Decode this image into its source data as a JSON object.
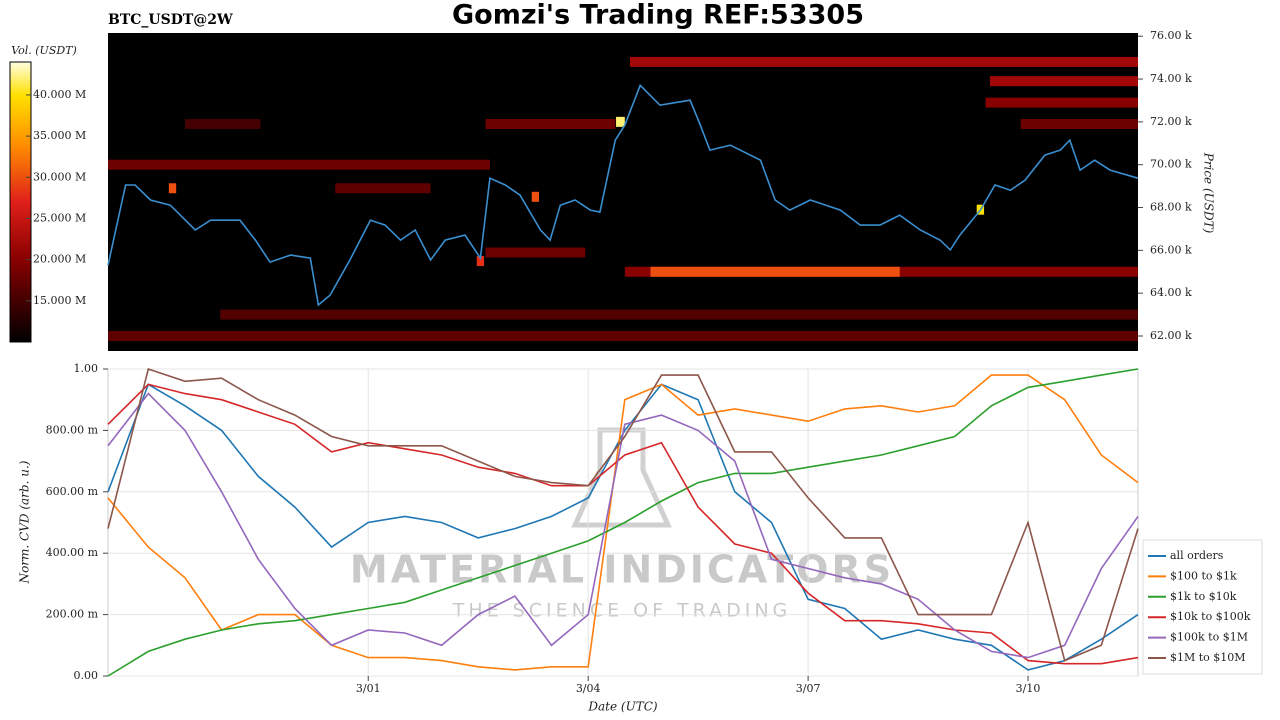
{
  "chart_data": [
    {
      "type": "heatmap",
      "title": "Gomzi's Trading REF:53305",
      "subtitle": "BTC_USDT@2W",
      "ylabel": "Price (USDT)",
      "xlim": [
        -3.55,
        10.5
      ],
      "ylim": [
        61300,
        76150
      ],
      "yticks": [
        {
          "value": 62000,
          "label": "62.00 k"
        },
        {
          "value": 64000,
          "label": "64.00 k"
        },
        {
          "value": 66000,
          "label": "66.00 k"
        },
        {
          "value": 68000,
          "label": "68.00 k"
        },
        {
          "value": 70000,
          "label": "70.00 k"
        },
        {
          "value": 72000,
          "label": "72.00 k"
        },
        {
          "value": 74000,
          "label": "74.00 k"
        },
        {
          "value": 76000,
          "label": "76.00 k"
        }
      ],
      "color": "#3a8fd0",
      "x": [
        -3.55,
        -3.31,
        -3.18,
        -2.97,
        -2.7,
        -2.36,
        -2.15,
        -1.75,
        -1.54,
        -1.34,
        -1.06,
        -0.79,
        -0.68,
        -0.52,
        -0.25,
        0.03,
        0.23,
        0.44,
        0.64,
        0.85,
        1.05,
        1.32,
        1.53,
        1.66,
        1.87,
        2.07,
        2.35,
        2.48,
        2.62,
        2.82,
        3.03,
        3.16,
        3.37,
        3.5,
        3.71,
        3.98,
        4.39,
        4.53,
        4.66,
        4.94,
        5.35,
        5.55,
        5.75,
        6.03,
        6.44,
        6.71,
        6.98,
        7.25,
        7.53,
        7.8,
        7.94,
        8.07,
        8.35,
        8.55,
        8.76,
        8.96,
        9.23,
        9.44,
        9.57,
        9.71,
        9.91,
        10.12,
        10.5
      ],
      "values": [
        65300,
        69050,
        69050,
        68350,
        68110,
        66950,
        67410,
        67410,
        66480,
        65450,
        65780,
        65640,
        63450,
        63910,
        65550,
        67410,
        67180,
        66480,
        66950,
        65550,
        66480,
        66710,
        65640,
        69370,
        69050,
        68580,
        66950,
        66480,
        68110,
        68350,
        67880,
        67790,
        71150,
        71850,
        73710,
        72780,
        73010,
        71850,
        70680,
        70910,
        70210,
        68350,
        67880,
        68350,
        67880,
        67180,
        67180,
        67640,
        66950,
        66480,
        66020,
        66710,
        67880,
        69050,
        68810,
        69280,
        70450,
        70680,
        71150,
        69750,
        70210,
        69750,
        69370
      ],
      "heatmap": [
        {
          "price": 62000,
          "x0": -3.55,
          "x1": 10.5,
          "volume": 17000000
        },
        {
          "price": 63000,
          "x0": -2.02,
          "x1": 10.5,
          "volume": 16000000
        },
        {
          "price": 65000,
          "x0": 3.5,
          "x1": 10.5,
          "volume": 20000000
        },
        {
          "price": 65000,
          "x0": 3.85,
          "x1": 7.25,
          "volume": 30000000
        },
        {
          "price": 65900,
          "x0": 1.6,
          "x1": 2.96,
          "volume": 18000000
        },
        {
          "price": 68900,
          "x0": -0.45,
          "x1": 0.85,
          "volume": 17000000
        },
        {
          "price": 70000,
          "x0": -3.55,
          "x1": 1.66,
          "volume": 18000000
        },
        {
          "price": 71900,
          "x0": -2.5,
          "x1": -1.47,
          "volume": 15000000
        },
        {
          "price": 71900,
          "x0": 1.6,
          "x1": 3.37,
          "volume": 18000000
        },
        {
          "price": 71900,
          "x0": 8.9,
          "x1": 10.5,
          "volume": 18000000
        },
        {
          "price": 72900,
          "x0": 8.42,
          "x1": 10.5,
          "volume": 20000000
        },
        {
          "price": 73900,
          "x0": 8.48,
          "x1": 10.5,
          "volume": 22000000
        },
        {
          "price": 74800,
          "x0": 3.57,
          "x1": 10.5,
          "volume": 22000000
        },
        {
          "price": 72000,
          "x0": 3.38,
          "x1": 3.5,
          "volume": 42000000
        },
        {
          "price": 68900,
          "x0": -2.72,
          "x1": -2.62,
          "volume": 30000000
        },
        {
          "price": 67900,
          "x0": 8.3,
          "x1": 8.4,
          "volume": 40000000
        },
        {
          "price": 65500,
          "x0": 1.48,
          "x1": 1.58,
          "volume": 28000000
        },
        {
          "price": 68500,
          "x0": 2.23,
          "x1": 2.33,
          "volume": 30000000
        }
      ],
      "colorbar": {
        "label": "Vol. (USDT)",
        "lim": [
          10000000,
          44000000
        ],
        "ticks": [
          {
            "value": 15000000,
            "label": "15.000 M"
          },
          {
            "value": 20000000,
            "label": "20.000 M"
          },
          {
            "value": 25000000,
            "label": "25.000 M"
          },
          {
            "value": 30000000,
            "label": "30.000 M"
          },
          {
            "value": 35000000,
            "label": "35.000 M"
          },
          {
            "value": 40000000,
            "label": "40.000 M"
          }
        ]
      }
    },
    {
      "type": "line",
      "xlabel": "Date (UTC)",
      "ylabel": "Norm. CVD (arb. u.)",
      "annotations": [
        "MATERIAL INDICATORS",
        "THE SCIENCE OF TRADING"
      ],
      "grid": true,
      "legend": "right",
      "xlim": [
        -3.55,
        10.5
      ],
      "xticks": [
        {
          "value": 0,
          "label": "3/01"
        },
        {
          "value": 3,
          "label": "3/04"
        },
        {
          "value": 6,
          "label": "3/07"
        },
        {
          "value": 9,
          "label": "3/10"
        }
      ],
      "ylim": [
        0,
        1
      ],
      "yticks": [
        {
          "value": 0,
          "label": "0.00"
        },
        {
          "value": 0.2,
          "label": "200.00 m"
        },
        {
          "value": 0.4,
          "label": "400.00 m"
        },
        {
          "value": 0.6,
          "label": "600.00 m"
        },
        {
          "value": 0.8,
          "label": "800.00 m"
        },
        {
          "value": 1,
          "label": "1.00"
        }
      ],
      "x": [
        -3.55,
        -3,
        -2.5,
        -2,
        -1.5,
        -1,
        -0.5,
        0,
        0.5,
        1,
        1.5,
        2,
        2.5,
        3,
        3.5,
        4,
        4.5,
        5,
        5.5,
        6,
        6.5,
        7,
        7.5,
        8,
        8.5,
        9,
        9.5,
        10,
        10.5
      ],
      "series": [
        {
          "name": "all orders",
          "color": "#1f77b4",
          "values": [
            0.6,
            0.95,
            0.88,
            0.8,
            0.65,
            0.55,
            0.42,
            0.5,
            0.52,
            0.5,
            0.45,
            0.48,
            0.52,
            0.58,
            0.8,
            0.95,
            0.9,
            0.6,
            0.5,
            0.25,
            0.22,
            0.12,
            0.15,
            0.12,
            0.1,
            0.02,
            0.05,
            0.12,
            0.2
          ]
        },
        {
          "name": "$100 to $1k",
          "color": "#ff7f0e",
          "values": [
            0.58,
            0.42,
            0.32,
            0.15,
            0.2,
            0.2,
            0.1,
            0.06,
            0.06,
            0.05,
            0.03,
            0.02,
            0.03,
            0.03,
            0.9,
            0.95,
            0.85,
            0.87,
            0.85,
            0.83,
            0.87,
            0.88,
            0.86,
            0.88,
            0.98,
            0.98,
            0.9,
            0.72,
            0.63
          ]
        },
        {
          "name": "$1k to $10k",
          "color": "#2ca02c",
          "values": [
            0,
            0.08,
            0.12,
            0.15,
            0.17,
            0.18,
            0.2,
            0.22,
            0.24,
            0.28,
            0.32,
            0.36,
            0.4,
            0.44,
            0.5,
            0.57,
            0.63,
            0.66,
            0.66,
            0.68,
            0.7,
            0.72,
            0.75,
            0.78,
            0.88,
            0.94,
            0.96,
            0.98,
            1
          ]
        },
        {
          "name": "$10k to $100k",
          "color": "#d62728",
          "values": [
            0.82,
            0.95,
            0.92,
            0.9,
            0.86,
            0.82,
            0.73,
            0.76,
            0.74,
            0.72,
            0.68,
            0.66,
            0.62,
            0.62,
            0.72,
            0.76,
            0.55,
            0.43,
            0.4,
            0.27,
            0.18,
            0.18,
            0.17,
            0.15,
            0.14,
            0.05,
            0.04,
            0.04,
            0.06
          ]
        },
        {
          "name": "$100k to $1M",
          "color": "#9467bd",
          "values": [
            0.75,
            0.92,
            0.8,
            0.6,
            0.38,
            0.22,
            0.1,
            0.15,
            0.14,
            0.1,
            0.2,
            0.26,
            0.1,
            0.2,
            0.82,
            0.85,
            0.8,
            0.7,
            0.38,
            0.35,
            0.32,
            0.3,
            0.25,
            0.15,
            0.08,
            0.06,
            0.1,
            0.35,
            0.52
          ]
        },
        {
          "name": "$1M to $10M",
          "color": "#8c564b",
          "values": [
            0.48,
            1,
            0.96,
            0.97,
            0.9,
            0.85,
            0.78,
            0.75,
            0.75,
            0.75,
            0.7,
            0.65,
            0.63,
            0.62,
            0.78,
            0.98,
            0.98,
            0.73,
            0.73,
            0.58,
            0.45,
            0.45,
            0.2,
            0.2,
            0.2,
            0.5,
            0.05,
            0.1,
            0.48
          ]
        }
      ]
    }
  ]
}
